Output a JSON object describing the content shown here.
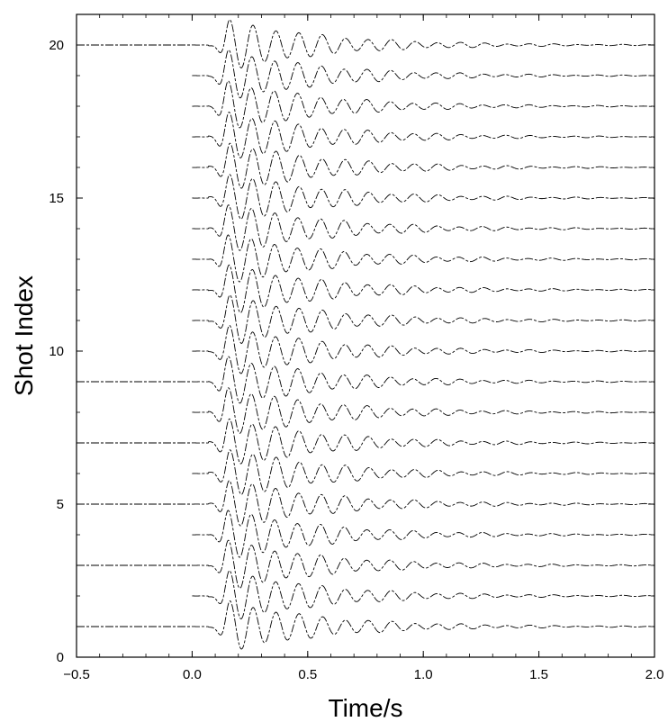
{
  "chart_data": {
    "type": "line",
    "title": "",
    "xlabel": "Time/s",
    "ylabel": "Shot Index",
    "xlim": [
      -0.5,
      2.0
    ],
    "ylim": [
      0,
      21
    ],
    "x_ticks": [
      -0.5,
      0.0,
      0.5,
      1.0,
      1.5,
      2.0
    ],
    "x_tick_labels": [
      "-0.5",
      "0.0",
      "0.5",
      "1.0",
      "1.5",
      "2.0"
    ],
    "y_ticks": [
      0,
      5,
      10,
      15,
      20
    ],
    "y_tick_labels": [
      "0",
      "5",
      "10",
      "15",
      "20"
    ],
    "grid": false,
    "legend": "none",
    "line_color": "#000000",
    "series": [
      {
        "shot": 1,
        "trace_start": -0.5
      },
      {
        "shot": 2,
        "trace_start": 0.0
      },
      {
        "shot": 3,
        "trace_start": -0.5
      },
      {
        "shot": 4,
        "trace_start": 0.0
      },
      {
        "shot": 5,
        "trace_start": -0.5
      },
      {
        "shot": 6,
        "trace_start": 0.0
      },
      {
        "shot": 7,
        "trace_start": -0.5
      },
      {
        "shot": 8,
        "trace_start": 0.0
      },
      {
        "shot": 9,
        "trace_start": -0.5
      },
      {
        "shot": 10,
        "trace_start": 0.0
      },
      {
        "shot": 11,
        "trace_start": 0.0
      },
      {
        "shot": 12,
        "trace_start": 0.0
      },
      {
        "shot": 13,
        "trace_start": 0.0
      },
      {
        "shot": 14,
        "trace_start": 0.0
      },
      {
        "shot": 15,
        "trace_start": 0.0
      },
      {
        "shot": 16,
        "trace_start": 0.0
      },
      {
        "shot": 17,
        "trace_start": 0.0
      },
      {
        "shot": 18,
        "trace_start": 0.0
      },
      {
        "shot": 19,
        "trace_start": 0.0
      },
      {
        "shot": 20,
        "trace_start": -0.5
      }
    ],
    "wavelet": {
      "amplitude_shots": 0.7,
      "duration_s": 2.0,
      "peak_time_s": 0.16,
      "dominant_freq_hz": 10
    }
  }
}
